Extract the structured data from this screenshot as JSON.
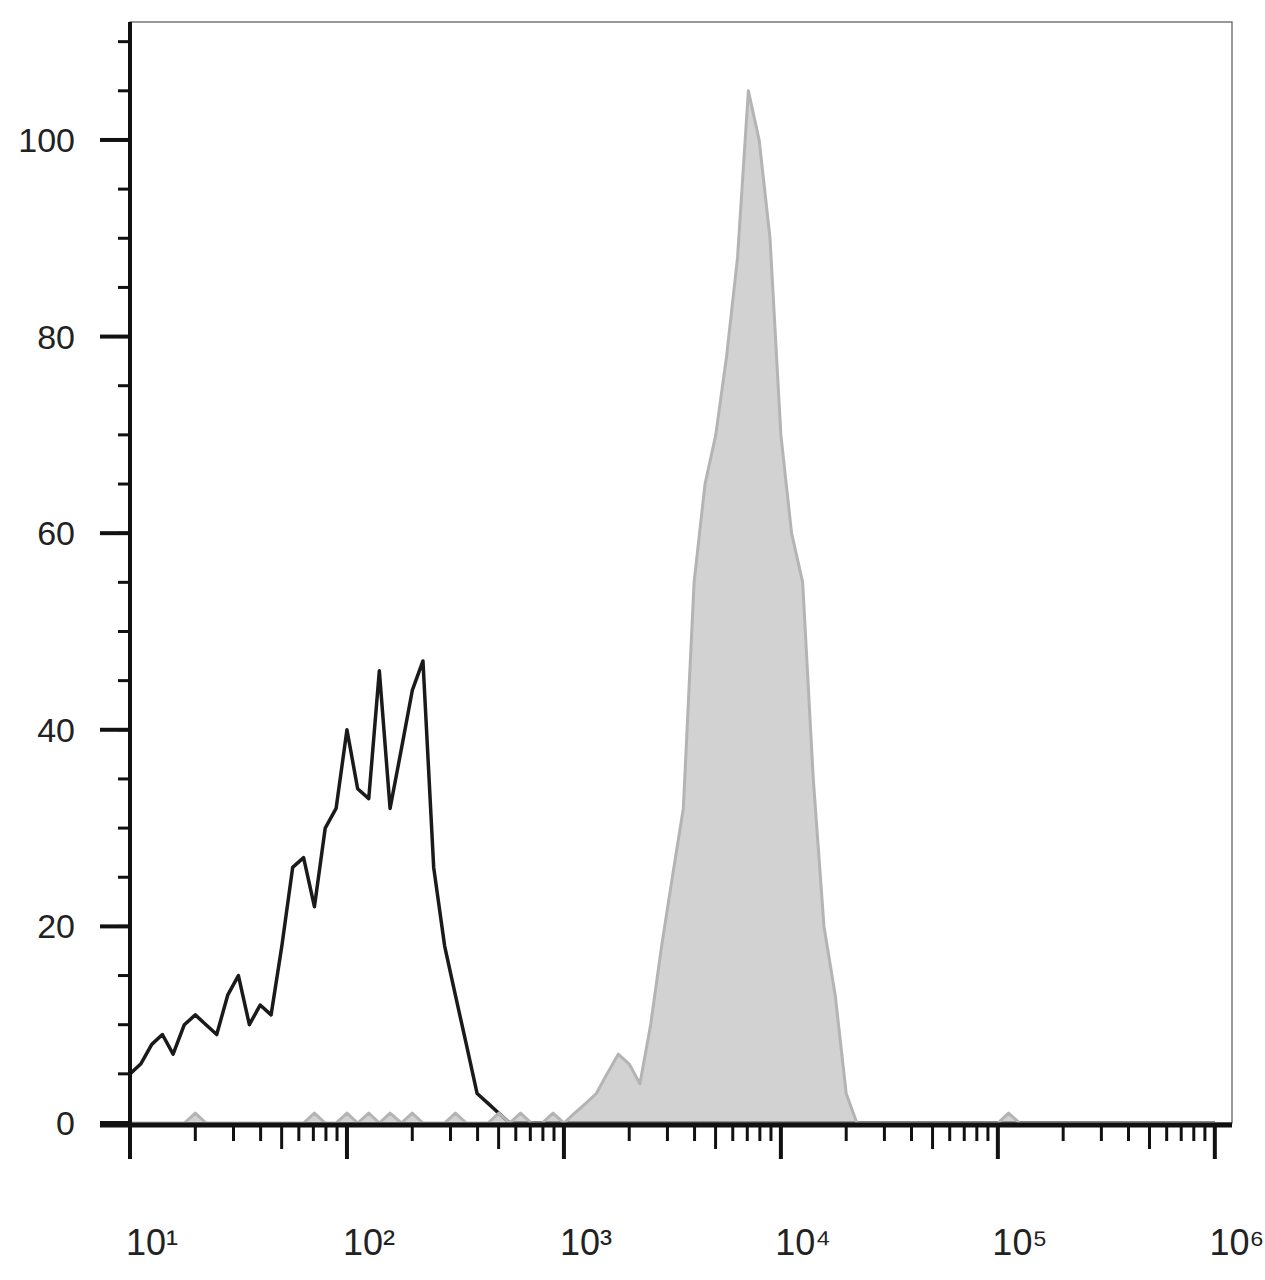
{
  "chart_data": {
    "type": "line",
    "log": "x",
    "x": [
      10,
      11.2,
      12.6,
      14.1,
      15.8,
      17.8,
      20,
      22.4,
      25.1,
      28.2,
      31.6,
      35.5,
      39.8,
      44.7,
      50.1,
      56.2,
      63.1,
      70.8,
      79.4,
      89.1,
      100,
      112,
      126,
      141,
      158,
      178,
      200,
      224,
      251,
      282,
      316,
      355,
      398,
      447,
      501,
      562,
      631,
      708,
      794,
      891,
      1000,
      1120,
      1260,
      1410,
      1580,
      1780,
      2000,
      2240,
      2510,
      2820,
      3160,
      3550,
      3980,
      4470,
      5010,
      5620,
      6310,
      7080,
      7940,
      8910,
      10000,
      11200,
      12600,
      14100,
      15800,
      17800,
      20000,
      22400,
      25100,
      28200,
      31600,
      100000,
      112000,
      126000,
      1000000
    ],
    "series": [
      {
        "color": "#1a1a1a",
        "type": "line",
        "values": [
          5,
          6,
          8,
          9,
          7,
          10,
          11,
          10,
          9,
          13,
          15,
          10,
          12,
          11,
          18,
          26,
          27,
          22,
          30,
          32,
          40,
          34,
          33,
          46,
          32,
          38,
          44,
          47,
          26,
          18,
          13,
          8,
          3,
          2,
          1,
          0,
          0,
          0,
          0,
          0,
          0,
          0,
          0,
          0,
          0,
          0,
          0,
          0,
          0,
          0,
          0,
          0,
          0,
          0,
          0,
          0,
          0,
          0,
          0,
          0,
          0,
          0,
          0,
          0,
          0,
          0,
          0,
          0,
          0,
          0,
          0,
          0,
          0,
          0,
          0
        ]
      },
      {
        "color": "#b4b4b4",
        "type": "area",
        "values": [
          0,
          0,
          0,
          0,
          0,
          0,
          1,
          0,
          0,
          0,
          0,
          0,
          0,
          0,
          0,
          0,
          0,
          1,
          0,
          0,
          1,
          0,
          1,
          0,
          1,
          0,
          1,
          0,
          0,
          0,
          1,
          0,
          0,
          0,
          1,
          0,
          1,
          0,
          0,
          1,
          0,
          1,
          2,
          3,
          5,
          7,
          6,
          4,
          10,
          18,
          25,
          32,
          55,
          65,
          70,
          78,
          88,
          105,
          100,
          90,
          70,
          60,
          55,
          35,
          20,
          13,
          3,
          0,
          0,
          0,
          0,
          0,
          1,
          0,
          0
        ]
      }
    ],
    "xlim": [
      10,
      1200000
    ],
    "xticks": [
      {
        "value": 10,
        "label": "10¹"
      },
      {
        "value": 100,
        "label": "10²"
      },
      {
        "value": 1000,
        "label": "10³"
      },
      {
        "value": 10000,
        "label": "10⁴"
      },
      {
        "value": 100000,
        "label": "10⁵"
      },
      {
        "value": 1000000,
        "label": "10⁶"
      }
    ],
    "ylim": [
      0,
      112
    ],
    "yticks": [
      0,
      20,
      40,
      60,
      80,
      100
    ]
  }
}
